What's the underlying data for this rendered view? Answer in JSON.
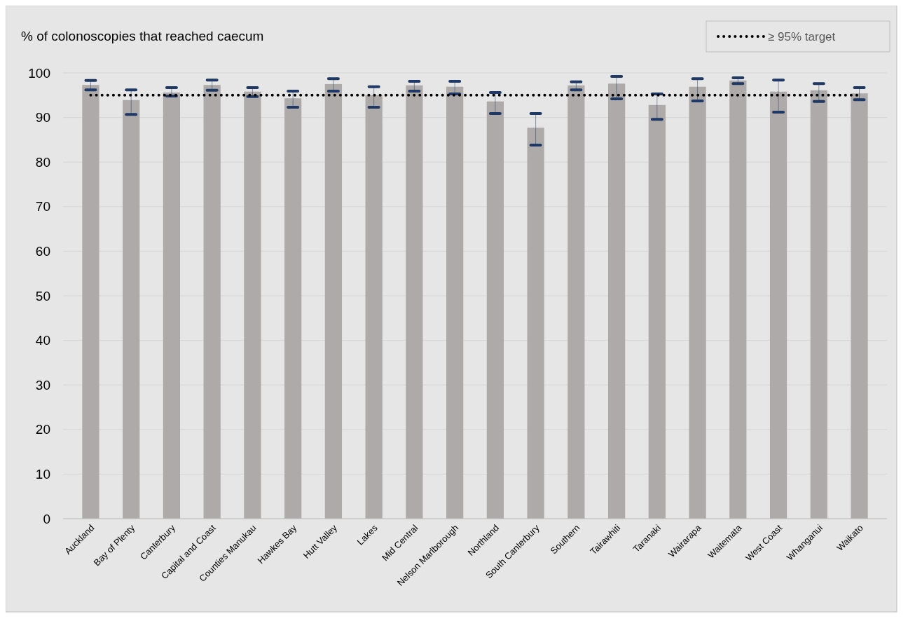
{
  "chart_data": {
    "type": "bar",
    "title": "% of colonoscopies that reached caecum",
    "categories": [
      "Auckland",
      "Bay of Plenty",
      "Canterbury",
      "Capital and Coast",
      "Counties Manukau",
      "Hawkes Bay",
      "Hutt Valley",
      "Lakes",
      "Mid Central",
      "Nelson Marlborough",
      "Northland",
      "South Canterbury",
      "Southern",
      "Tairawhiti",
      "Taranaki",
      "Wairarapa",
      "Waitemata",
      "West Coast",
      "Whanganui",
      "Waikato"
    ],
    "values": [
      97.3,
      93.9,
      95.6,
      97.3,
      95.8,
      94.3,
      97.5,
      95.0,
      97.2,
      96.9,
      93.6,
      87.7,
      97.2,
      97.6,
      92.8,
      96.9,
      98.3,
      95.8,
      96.1,
      95.4
    ],
    "errors": [
      [
        96.2,
        98.3
      ],
      [
        90.7,
        96.2
      ],
      [
        94.8,
        96.7
      ],
      [
        96.1,
        98.4
      ],
      [
        94.7,
        96.7
      ],
      [
        92.3,
        95.9
      ],
      [
        95.9,
        98.7
      ],
      [
        92.3,
        96.9
      ],
      [
        95.9,
        98.1
      ],
      [
        95.3,
        98.1
      ],
      [
        90.9,
        95.6
      ],
      [
        83.8,
        90.9
      ],
      [
        96.2,
        98.0
      ],
      [
        94.2,
        99.2
      ],
      [
        89.6,
        95.3
      ],
      [
        93.7,
        98.7
      ],
      [
        97.6,
        98.9
      ],
      [
        91.2,
        98.4
      ],
      [
        93.6,
        97.6
      ],
      [
        94.0,
        96.7
      ]
    ],
    "color": "#aeaaaa",
    "ylim": [
      0,
      100
    ],
    "yticks": [
      0,
      10,
      20,
      30,
      40,
      50,
      60,
      70,
      80,
      90,
      100
    ],
    "grid": "y",
    "ref_lines": [
      {
        "axis": "y",
        "value": 95,
        "label": "≥ 95% target",
        "color": "#000000",
        "line_style": "dotted"
      }
    ],
    "legend": "top right"
  }
}
